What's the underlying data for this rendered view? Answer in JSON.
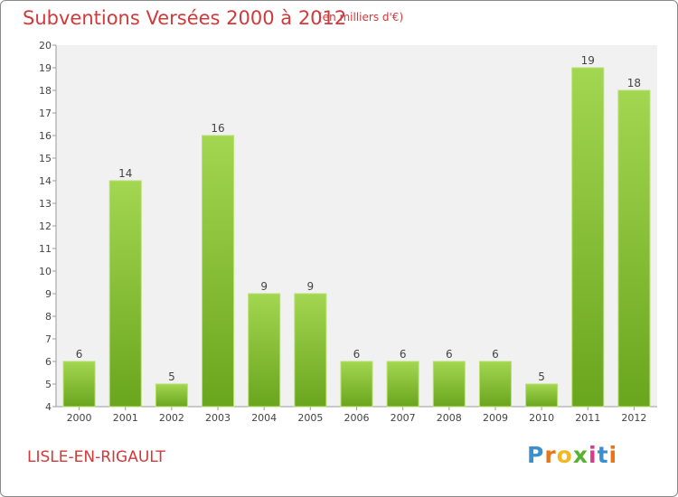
{
  "header": {
    "title": "Subventions Versées 2000 à 2012",
    "subtitle": "(en milliers d'€)"
  },
  "footer": {
    "commune": "LISLE-EN-RIGAULT",
    "logo_letters": [
      "P",
      "r",
      "o",
      "x",
      "i",
      "t",
      "i"
    ],
    "logo_colors": [
      "#3a8fd0",
      "#e8751a",
      "#f2b81e",
      "#58b232",
      "#d83b8a",
      "#3a8fd0",
      "#e8751a"
    ]
  },
  "chart_data": {
    "type": "bar",
    "categories": [
      "2000",
      "2001",
      "2002",
      "2003",
      "2004",
      "2005",
      "2006",
      "2007",
      "2008",
      "2009",
      "2010",
      "2011",
      "2012"
    ],
    "values": [
      6,
      14,
      5,
      16,
      9,
      9,
      6,
      6,
      6,
      6,
      5,
      19,
      18
    ],
    "ylim": [
      4,
      20
    ],
    "yticks": [
      4,
      5,
      6,
      7,
      8,
      9,
      10,
      11,
      12,
      13,
      14,
      15,
      16,
      17,
      18,
      19,
      20
    ],
    "grid": false,
    "bar_color_light": "#a3d651",
    "bar_color_dark": "#6aa51e"
  }
}
